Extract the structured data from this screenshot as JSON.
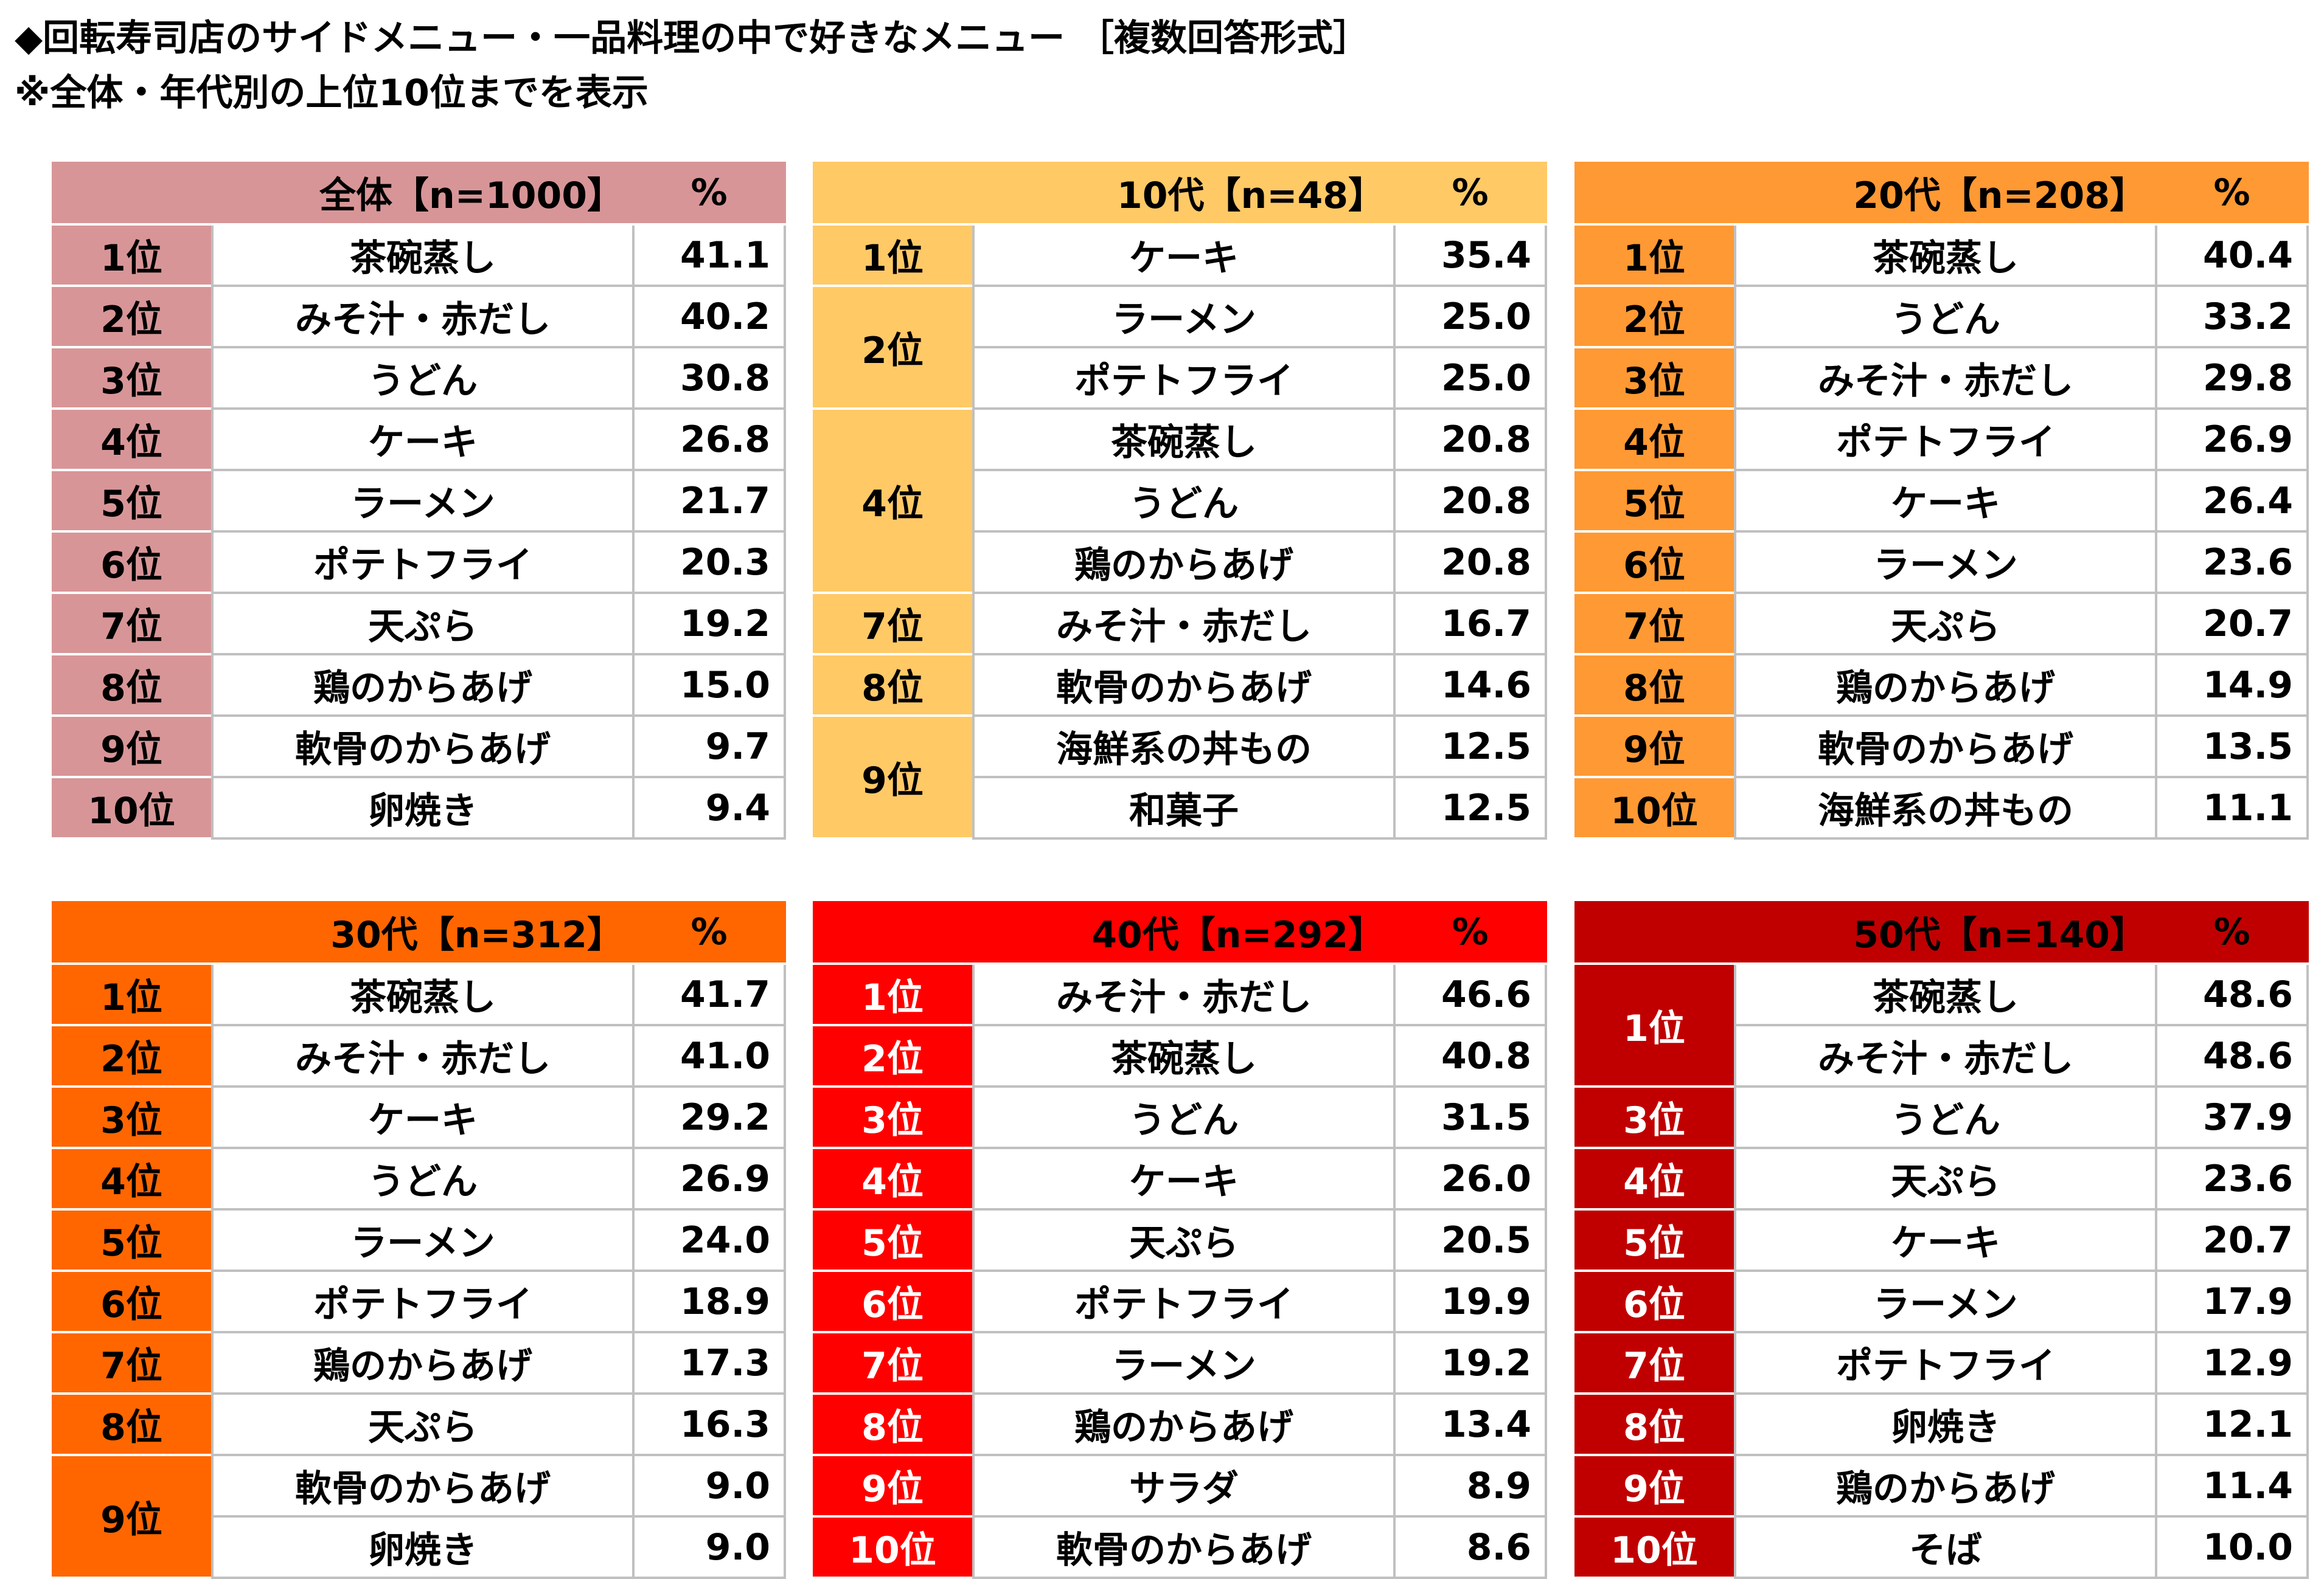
{
  "title_line1": "◆回転寿司店のサイドメニュー・一品料理の中で好きなメニュー ［複数回答形式］",
  "title_line2": "※全体・年代別の上位10位までを表示",
  "tables": [
    {
      "header": "全体【n=1000】",
      "pct": "%",
      "color": "#d89597",
      "rank_text_color": "#000000",
      "rows": [
        {
          "rank": "1位",
          "item": "茶碗蒸し",
          "value": "41.1"
        },
        {
          "rank": "2位",
          "item": "みそ汁・赤だし",
          "value": "40.2"
        },
        {
          "rank": "3位",
          "item": "うどん",
          "value": "30.8"
        },
        {
          "rank": "4位",
          "item": "ケーキ",
          "value": "26.8"
        },
        {
          "rank": "5位",
          "item": "ラーメン",
          "value": "21.7"
        },
        {
          "rank": "6位",
          "item": "ポテトフライ",
          "value": "20.3"
        },
        {
          "rank": "7位",
          "item": "天ぷら",
          "value": "19.2"
        },
        {
          "rank": "8位",
          "item": "鶏のからあげ",
          "value": "15.0"
        },
        {
          "rank": "9位",
          "item": "軟骨のからあげ",
          "value": "9.7"
        },
        {
          "rank": "10位",
          "item": "卵焼き",
          "value": "9.4"
        }
      ]
    },
    {
      "header": "10代【n=48】",
      "pct": "%",
      "color": "#ffc966",
      "rank_text_color": "#000000",
      "rows": [
        {
          "rank": "1位",
          "item": "ケーキ",
          "value": "35.4"
        },
        {
          "rank": "2位",
          "item": "ラーメン",
          "value": "25.0"
        },
        {
          "rank": "",
          "item": "ポテトフライ",
          "value": "25.0"
        },
        {
          "rank": "4位",
          "item": "茶碗蒸し",
          "value": "20.8"
        },
        {
          "rank": "",
          "item": "うどん",
          "value": "20.8"
        },
        {
          "rank": "",
          "item": "鶏のからあげ",
          "value": "20.8"
        },
        {
          "rank": "7位",
          "item": "みそ汁・赤だし",
          "value": "16.7"
        },
        {
          "rank": "8位",
          "item": "軟骨のからあげ",
          "value": "14.6"
        },
        {
          "rank": "9位",
          "item": "海鮮系の丼もの",
          "value": "12.5"
        },
        {
          "rank": "",
          "item": "和菓子",
          "value": "12.5"
        }
      ]
    },
    {
      "header": "20代【n=208】",
      "pct": "%",
      "color": "#ff9933",
      "rank_text_color": "#000000",
      "rows": [
        {
          "rank": "1位",
          "item": "茶碗蒸し",
          "value": "40.4"
        },
        {
          "rank": "2位",
          "item": "うどん",
          "value": "33.2"
        },
        {
          "rank": "3位",
          "item": "みそ汁・赤だし",
          "value": "29.8"
        },
        {
          "rank": "4位",
          "item": "ポテトフライ",
          "value": "26.9"
        },
        {
          "rank": "5位",
          "item": "ケーキ",
          "value": "26.4"
        },
        {
          "rank": "6位",
          "item": "ラーメン",
          "value": "23.6"
        },
        {
          "rank": "7位",
          "item": "天ぷら",
          "value": "20.7"
        },
        {
          "rank": "8位",
          "item": "鶏のからあげ",
          "value": "14.9"
        },
        {
          "rank": "9位",
          "item": "軟骨のからあげ",
          "value": "13.5"
        },
        {
          "rank": "10位",
          "item": "海鮮系の丼もの",
          "value": "11.1"
        }
      ]
    },
    {
      "header": "30代【n=312】",
      "pct": "%",
      "color": "#ff6600",
      "rank_text_color": "#000000",
      "rows": [
        {
          "rank": "1位",
          "item": "茶碗蒸し",
          "value": "41.7"
        },
        {
          "rank": "2位",
          "item": "みそ汁・赤だし",
          "value": "41.0"
        },
        {
          "rank": "3位",
          "item": "ケーキ",
          "value": "29.2"
        },
        {
          "rank": "4位",
          "item": "うどん",
          "value": "26.9"
        },
        {
          "rank": "5位",
          "item": "ラーメン",
          "value": "24.0"
        },
        {
          "rank": "6位",
          "item": "ポテトフライ",
          "value": "18.9"
        },
        {
          "rank": "7位",
          "item": "鶏のからあげ",
          "value": "17.3"
        },
        {
          "rank": "8位",
          "item": "天ぷら",
          "value": "16.3"
        },
        {
          "rank": "9位",
          "item": "軟骨のからあげ",
          "value": "9.0"
        },
        {
          "rank": "",
          "item": "卵焼き",
          "value": "9.0"
        }
      ]
    },
    {
      "header": "40代【n=292】",
      "pct": "%",
      "color": "#ff0000",
      "rank_text_color": "#ffffff",
      "rows": [
        {
          "rank": "1位",
          "item": "みそ汁・赤だし",
          "value": "46.6"
        },
        {
          "rank": "2位",
          "item": "茶碗蒸し",
          "value": "40.8"
        },
        {
          "rank": "3位",
          "item": "うどん",
          "value": "31.5"
        },
        {
          "rank": "4位",
          "item": "ケーキ",
          "value": "26.0"
        },
        {
          "rank": "5位",
          "item": "天ぷら",
          "value": "20.5"
        },
        {
          "rank": "6位",
          "item": "ポテトフライ",
          "value": "19.9"
        },
        {
          "rank": "7位",
          "item": "ラーメン",
          "value": "19.2"
        },
        {
          "rank": "8位",
          "item": "鶏のからあげ",
          "value": "13.4"
        },
        {
          "rank": "9位",
          "item": "サラダ",
          "value": "8.9"
        },
        {
          "rank": "10位",
          "item": "軟骨のからあげ",
          "value": "8.6"
        }
      ]
    },
    {
      "header": "50代【n=140】",
      "pct": "%",
      "color": "#c00000",
      "rank_text_color": "#ffffff",
      "rows": [
        {
          "rank": "1位",
          "item": "茶碗蒸し",
          "value": "48.6"
        },
        {
          "rank": "",
          "item": "みそ汁・赤だし",
          "value": "48.6"
        },
        {
          "rank": "3位",
          "item": "うどん",
          "value": "37.9"
        },
        {
          "rank": "4位",
          "item": "天ぷら",
          "value": "23.6"
        },
        {
          "rank": "5位",
          "item": "ケーキ",
          "value": "20.7"
        },
        {
          "rank": "6位",
          "item": "ラーメン",
          "value": "17.9"
        },
        {
          "rank": "7位",
          "item": "ポテトフライ",
          "value": "12.9"
        },
        {
          "rank": "8位",
          "item": "卵焼き",
          "value": "12.1"
        },
        {
          "rank": "9位",
          "item": "鶏のからあげ",
          "value": "11.4"
        },
        {
          "rank": "10位",
          "item": "そば",
          "value": "10.0"
        }
      ]
    }
  ]
}
